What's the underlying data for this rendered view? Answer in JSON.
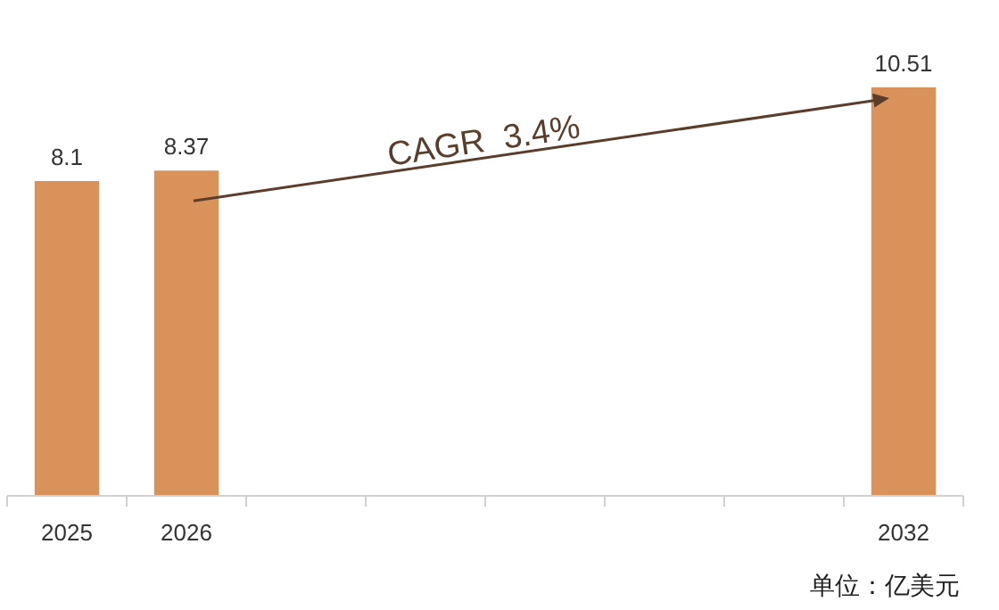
{
  "chart_data": {
    "type": "bar",
    "categories": [
      "2025",
      "2026",
      null,
      null,
      null,
      null,
      null,
      "2032"
    ],
    "values": [
      8.1,
      8.37,
      null,
      null,
      null,
      null,
      null,
      10.51
    ],
    "color": "#d9925a",
    "data_labels": true,
    "annotations": [
      "CAGR  3.4%",
      "单位：亿美元"
    ]
  }
}
